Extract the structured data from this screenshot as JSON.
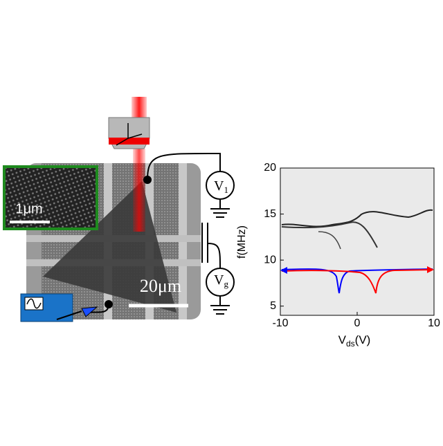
{
  "inset": {
    "scale_bar": "1μm"
  },
  "sem": {
    "scale_bar": "20μm"
  },
  "circuit": {
    "v1": {
      "main": "V",
      "sub": "1"
    },
    "vg": {
      "main": "V",
      "sub": "g"
    }
  },
  "plot": {
    "y_label": "f(MHz)",
    "x_label": {
      "main": "V",
      "sub": "ds",
      "unit": "(V)"
    },
    "xlim": [
      -10,
      10
    ],
    "ylim": [
      4,
      20
    ],
    "xticks": [
      -10,
      0,
      10
    ],
    "yticks": [
      5,
      10,
      15,
      20
    ]
  }
}
